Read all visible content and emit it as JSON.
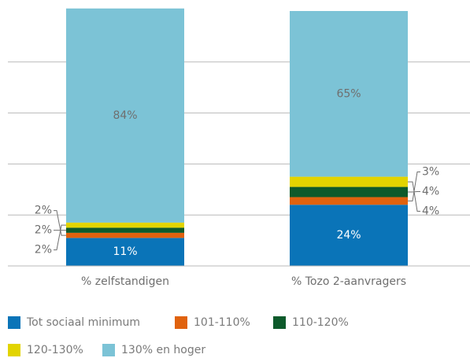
{
  "chart_data": {
    "type": "stacked_bar",
    "categories": [
      "% zelfstandigen",
      "% Tozo 2-aanvragers"
    ],
    "series": [
      {
        "name": "Tot sociaal minimum",
        "color": "#0a74b8",
        "values": [
          11,
          24
        ],
        "value_labels": [
          "11%",
          "24%"
        ]
      },
      {
        "name": "101-110%",
        "color": "#e0620e",
        "values": [
          2,
          3
        ],
        "value_labels": [
          "2%",
          "3%"
        ]
      },
      {
        "name": "110-120%",
        "color": "#0d5a2b",
        "values": [
          2,
          4
        ],
        "value_labels": [
          "2%",
          "4%"
        ]
      },
      {
        "name": "120-130%",
        "color": "#e2d400",
        "values": [
          2,
          4
        ],
        "value_labels": [
          "2%",
          "4%"
        ]
      },
      {
        "name": "130% en hoger",
        "color": "#7cc3d6",
        "values": [
          84,
          65
        ],
        "value_labels": [
          "84%",
          "65%"
        ]
      }
    ],
    "ylim": [
      0,
      100
    ],
    "yticks": [
      0,
      20,
      40,
      60,
      80
    ],
    "grid": true
  }
}
